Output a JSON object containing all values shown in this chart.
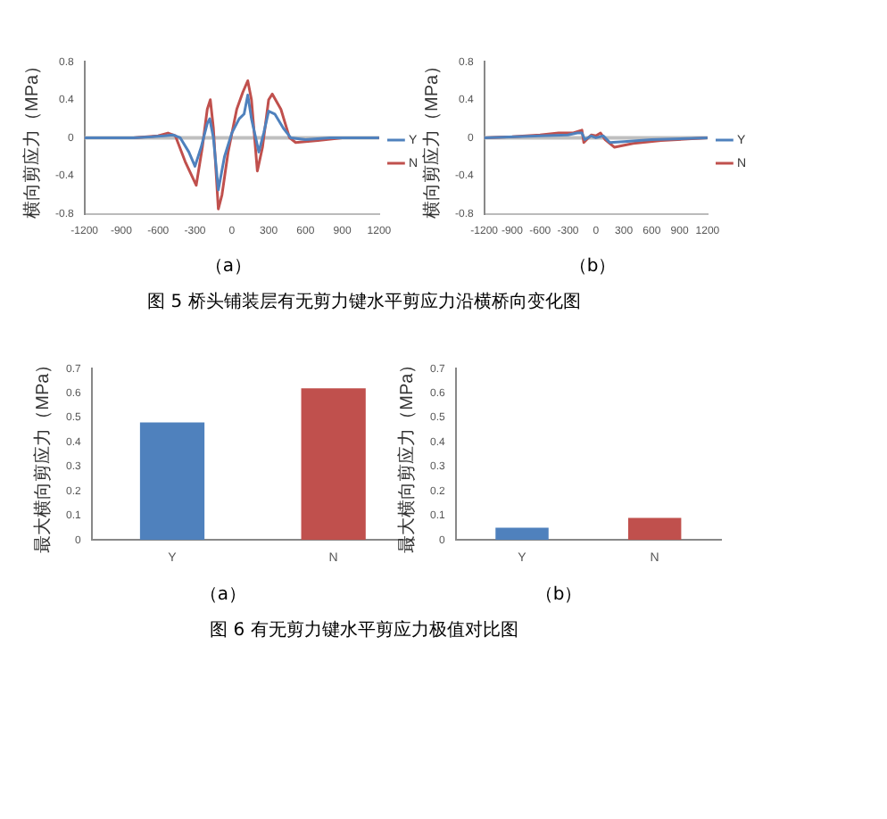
{
  "chart_data": [
    {
      "type": "line",
      "ylabel": "横向剪应力（MPa）",
      "xlim": [
        -1200,
        1200
      ],
      "xticks": [
        -1200,
        -900,
        -600,
        -300,
        0,
        300,
        600,
        900,
        1200
      ],
      "ylim": [
        -0.8,
        0.8
      ],
      "yticks": [
        -0.8,
        -0.4,
        0,
        0.4,
        0.8
      ],
      "grid": false,
      "legend": "right",
      "marker": "none",
      "ref_lines": [
        {
          "axis": "y",
          "value": 0,
          "color": "#bfbfbf"
        }
      ],
      "annotations": [
        "（a）"
      ],
      "series": [
        {
          "name": "Y",
          "color": "#4f81bd",
          "x": [
            -1200,
            -800,
            -650,
            -550,
            -480,
            -420,
            -350,
            -300,
            -250,
            -200,
            -180,
            -150,
            -110,
            -60,
            0,
            60,
            100,
            130,
            160,
            220,
            260,
            300,
            350,
            420,
            480,
            600,
            800,
            1200
          ],
          "values": [
            0,
            0,
            0.01,
            0.02,
            0.03,
            0,
            -0.15,
            -0.3,
            -0.1,
            0.15,
            0.2,
            0,
            -0.55,
            -0.2,
            0.05,
            0.2,
            0.25,
            0.45,
            0.2,
            -0.15,
            0.05,
            0.28,
            0.25,
            0.1,
            0,
            -0.02,
            0,
            0
          ]
        },
        {
          "name": "N",
          "color": "#c0504d",
          "x": [
            -1200,
            -800,
            -600,
            -520,
            -460,
            -380,
            -290,
            -240,
            -200,
            -175,
            -150,
            -110,
            -80,
            -30,
            40,
            90,
            130,
            160,
            208,
            250,
            300,
            330,
            400,
            470,
            520,
            700,
            900,
            1200
          ],
          "values": [
            0,
            0,
            0.02,
            0.05,
            0.02,
            -0.25,
            -0.5,
            -0.1,
            0.3,
            0.4,
            0.1,
            -0.75,
            -0.6,
            -0.15,
            0.3,
            0.48,
            0.6,
            0.4,
            -0.35,
            -0.1,
            0.4,
            0.46,
            0.3,
            0,
            -0.05,
            -0.03,
            0,
            0
          ]
        }
      ]
    },
    {
      "type": "line",
      "ylabel": "横向剪应力（MPa）",
      "xlim": [
        -1200,
        1200
      ],
      "xticks": [
        -1200,
        -900,
        -600,
        -300,
        0,
        300,
        600,
        900,
        1200
      ],
      "ylim": [
        -0.8,
        0.8
      ],
      "yticks": [
        -0.8,
        -0.4,
        0,
        0.4,
        0.8
      ],
      "grid": false,
      "legend": "right",
      "marker": "none",
      "ref_lines": [
        {
          "axis": "y",
          "value": 0,
          "color": "#bfbfbf"
        }
      ],
      "annotations": [
        "（b）",
        "图 5 桥头铺装层有无剪力键水平剪应力沿横桥向变化图"
      ],
      "series": [
        {
          "name": "Y",
          "color": "#4f81bd",
          "x": [
            -1200,
            -600,
            -300,
            -200,
            -150,
            -120,
            -50,
            0,
            80,
            150,
            300,
            600,
            1200
          ],
          "values": [
            0,
            0.02,
            0.03,
            0.05,
            0.05,
            -0.02,
            0.02,
            0,
            0.02,
            -0.05,
            -0.04,
            -0.02,
            0
          ]
        },
        {
          "name": "N",
          "color": "#c0504d",
          "x": [
            -1200,
            -900,
            -600,
            -400,
            -250,
            -150,
            -130,
            -50,
            0,
            50,
            100,
            200,
            400,
            700,
            1200
          ],
          "values": [
            0,
            0.01,
            0.03,
            0.05,
            0.05,
            0.08,
            -0.05,
            0.03,
            0.02,
            0.05,
            -0.02,
            -0.1,
            -0.06,
            -0.03,
            0
          ]
        }
      ]
    },
    {
      "type": "bar",
      "ylabel": "最大横向剪应力（MPa）",
      "categories": [
        "Y",
        "N"
      ],
      "values": [
        0.48,
        0.62
      ],
      "colors": [
        "#4f81bd",
        "#c0504d"
      ],
      "ylim": [
        0,
        0.7
      ],
      "yticks": [
        0,
        0.1,
        0.2,
        0.3,
        0.4,
        0.5,
        0.6,
        0.7
      ],
      "grid": false,
      "legend": false,
      "annotations": [
        "（a）"
      ]
    },
    {
      "type": "bar",
      "ylabel": "最大横向剪应力（MPa）",
      "categories": [
        "Y",
        "N"
      ],
      "values": [
        0.05,
        0.09
      ],
      "colors": [
        "#4f81bd",
        "#c0504d"
      ],
      "ylim": [
        0,
        0.7
      ],
      "yticks": [
        0,
        0.1,
        0.2,
        0.3,
        0.4,
        0.5,
        0.6,
        0.7
      ],
      "grid": false,
      "legend": false,
      "annotations": [
        "（b）",
        "图 6 有无剪力键水平剪应力极值对比图"
      ]
    }
  ]
}
